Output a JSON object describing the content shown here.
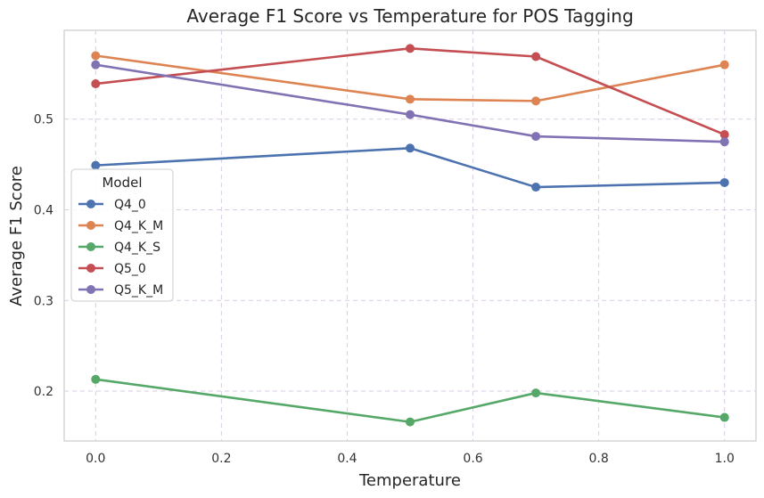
{
  "chart_data": {
    "type": "line",
    "title": "Average F1 Score vs Temperature for POS Tagging",
    "xlabel": "Temperature",
    "ylabel": "Average F1 Score",
    "xlim": [
      -0.05,
      1.05
    ],
    "ylim": [
      0.145,
      0.598
    ],
    "xticks": [
      0.0,
      0.2,
      0.4,
      0.6,
      0.8,
      1.0
    ],
    "xtick_labels": [
      "0.0",
      "0.2",
      "0.4",
      "0.6",
      "0.8",
      "1.0"
    ],
    "yticks": [
      0.2,
      0.3,
      0.4,
      0.5
    ],
    "ytick_labels": [
      "0.2",
      "0.3",
      "0.4",
      "0.5"
    ],
    "grid": true,
    "legend": {
      "title": "Model",
      "placement": "center-left"
    },
    "x": [
      0.0,
      0.5,
      0.7,
      1.0
    ],
    "series": [
      {
        "name": "Q4_0",
        "color": "#4c72b0",
        "values": [
          0.449,
          0.468,
          0.425,
          0.43
        ]
      },
      {
        "name": "Q4_K_M",
        "color": "#dd8452",
        "values": [
          0.57,
          0.522,
          0.52,
          0.56
        ]
      },
      {
        "name": "Q4_K_S",
        "color": "#55a868",
        "values": [
          0.213,
          0.166,
          0.198,
          0.171
        ]
      },
      {
        "name": "Q5_0",
        "color": "#c44e52",
        "values": [
          0.539,
          0.578,
          0.569,
          0.483
        ]
      },
      {
        "name": "Q5_K_M",
        "color": "#8172b3",
        "values": [
          0.56,
          0.505,
          0.481,
          0.475
        ]
      }
    ]
  }
}
